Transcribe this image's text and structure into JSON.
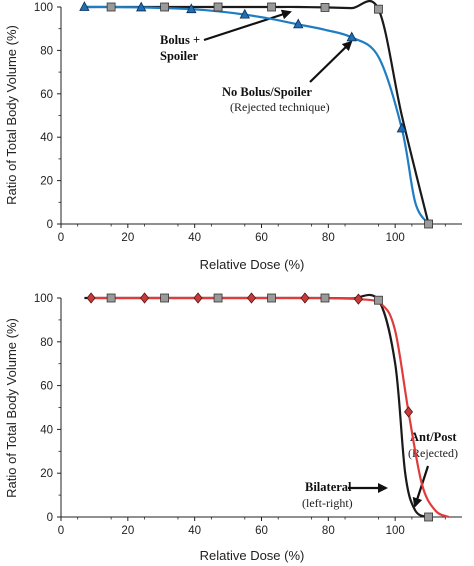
{
  "chart_data": [
    {
      "type": "line",
      "xlabel": "Relative Dose (%)",
      "ylabel": "Ratio of Total Body Volume (%)",
      "xlim": [
        0,
        120
      ],
      "ylim": [
        0,
        100
      ],
      "xticks": [
        "0",
        "20",
        "40",
        "60",
        "80",
        "100"
      ],
      "yticks": [
        "0",
        "20",
        "40",
        "60",
        "80",
        "100"
      ],
      "grid": false,
      "series": [
        {
          "color": "#1a1a1a",
          "marker": "square",
          "marker_color": "#9a9a9a",
          "x": [
            7,
            15,
            24,
            31,
            39,
            47,
            55,
            63,
            71,
            79,
            87,
            95,
            102,
            110
          ],
          "y": [
            100,
            100,
            100,
            100,
            100,
            100,
            100,
            100,
            100,
            99.8,
            99.5,
            99,
            50,
            0
          ],
          "markers_at": [
            15,
            31,
            47,
            63,
            79,
            95,
            110
          ]
        },
        {
          "color": "#1f7ec3",
          "marker": "triangle",
          "marker_color": "#1f6fb5",
          "x": [
            7,
            15,
            24,
            31,
            39,
            47,
            55,
            63,
            71,
            79,
            87,
            95,
            102,
            106,
            110
          ],
          "y": [
            100,
            100,
            99.8,
            99.5,
            99,
            98,
            96.5,
            94.5,
            92,
            89.5,
            86,
            77,
            44,
            10,
            0
          ],
          "markers_at": [
            7,
            24,
            39,
            55,
            71,
            87,
            102
          ]
        }
      ],
      "annotations": [
        {
          "lines": [
            "Bolus +",
            "Spoiler"
          ],
          "style": "bold"
        },
        {
          "lines": [
            "No Bolus/Spoiler"
          ],
          "style": "bold",
          "sub": "(Rejected technique)"
        }
      ]
    },
    {
      "type": "line",
      "xlabel": "Relative Dose (%)",
      "ylabel": "Ratio of Total Body Volume (%)",
      "xlim": [
        0,
        120
      ],
      "ylim": [
        0,
        100
      ],
      "xticks": [
        "0",
        "20",
        "40",
        "60",
        "80",
        "100"
      ],
      "yticks": [
        "0",
        "20",
        "40",
        "60",
        "80",
        "100"
      ],
      "grid": false,
      "series": [
        {
          "color": "#1a1a1a",
          "marker": "square",
          "marker_color": "#9a9a9a",
          "x": [
            7,
            15,
            24,
            31,
            39,
            47,
            55,
            63,
            71,
            79,
            87,
            95,
            100,
            103,
            106,
            110
          ],
          "y": [
            100,
            100,
            100,
            100,
            100,
            100,
            100,
            100,
            100,
            100,
            99.8,
            99,
            70,
            20,
            3,
            0
          ],
          "markers_at": [
            15,
            31,
            47,
            63,
            79,
            95,
            110
          ]
        },
        {
          "color": "#e23b3b",
          "marker": "diamond",
          "marker_color": "#c73a3a",
          "x": [
            9,
            25,
            41,
            57,
            73,
            89,
            96,
            100,
            104,
            108,
            112,
            116
          ],
          "y": [
            100,
            100,
            100,
            100,
            100,
            99.5,
            97,
            85,
            48,
            15,
            3,
            0
          ],
          "markers_at": [
            9,
            25,
            41,
            57,
            73,
            89,
            104
          ]
        }
      ],
      "annotations": [
        {
          "lines": [
            "Ant/Post"
          ],
          "style": "bold",
          "sub": "(Rejected)"
        },
        {
          "lines": [
            "Bilateral"
          ],
          "style": "bold",
          "sub": "(left-right)"
        }
      ]
    }
  ]
}
